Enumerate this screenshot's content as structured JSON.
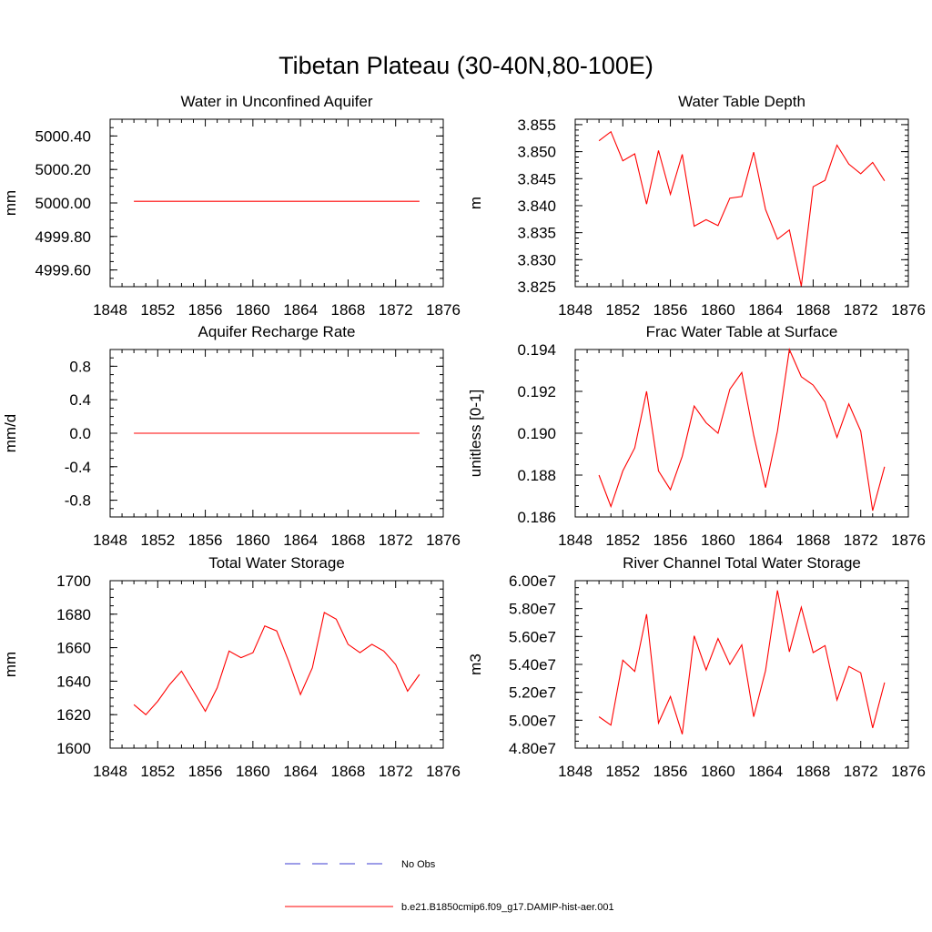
{
  "figure": {
    "title": "Tibetan Plateau (30-40N,80-100E)"
  },
  "legend": {
    "items": [
      {
        "label": "No Obs",
        "color": "#3b3bd1",
        "style": "dashed"
      },
      {
        "label": "b.e21.B1850cmip6.f09_g17.DAMIP-hist-aer.001",
        "color": "#ff0000",
        "style": "solid"
      }
    ]
  },
  "colors": {
    "series": "#ff0000",
    "axis": "#000000"
  },
  "chart_data": [
    {
      "type": "line",
      "title": "Water in Unconfined Aquifer",
      "xlabel": "",
      "ylabel": "mm",
      "xlim": [
        1848,
        1876
      ],
      "ylim": [
        4999.5,
        5000.5
      ],
      "xticks": [
        1848,
        1852,
        1856,
        1860,
        1864,
        1868,
        1872,
        1876
      ],
      "yticks": [
        4999.6,
        4999.8,
        5000.0,
        5000.2,
        5000.4
      ],
      "ytick_labels": [
        "4999.60",
        "4999.80",
        "5000.00",
        "5000.20",
        "5000.40"
      ],
      "yminor_step": 0.05,
      "x": [
        1850,
        1851,
        1852,
        1853,
        1854,
        1855,
        1856,
        1857,
        1858,
        1859,
        1860,
        1861,
        1862,
        1863,
        1864,
        1865,
        1866,
        1867,
        1868,
        1869,
        1870,
        1871,
        1872,
        1873,
        1874
      ],
      "series": [
        {
          "values": [
            5000.01,
            5000.01,
            5000.01,
            5000.01,
            5000.01,
            5000.01,
            5000.01,
            5000.01,
            5000.01,
            5000.01,
            5000.01,
            5000.01,
            5000.01,
            5000.01,
            5000.01,
            5000.01,
            5000.01,
            5000.01,
            5000.01,
            5000.01,
            5000.01,
            5000.01,
            5000.01,
            5000.01,
            5000.01
          ]
        }
      ]
    },
    {
      "type": "line",
      "title": "Water Table Depth",
      "xlabel": "",
      "ylabel": "m",
      "xlim": [
        1848,
        1876
      ],
      "ylim": [
        3.825,
        3.856
      ],
      "xticks": [
        1848,
        1852,
        1856,
        1860,
        1864,
        1868,
        1872,
        1876
      ],
      "yticks": [
        3.825,
        3.83,
        3.835,
        3.84,
        3.845,
        3.85,
        3.855
      ],
      "ytick_labels": [
        "3.825",
        "3.830",
        "3.835",
        "3.840",
        "3.845",
        "3.850",
        "3.855"
      ],
      "yminor_step": 0.001,
      "x": [
        1850,
        1851,
        1852,
        1853,
        1854,
        1855,
        1856,
        1857,
        1858,
        1859,
        1860,
        1861,
        1862,
        1863,
        1864,
        1865,
        1866,
        1867,
        1868,
        1869,
        1870,
        1871,
        1872,
        1873,
        1874
      ],
      "series": [
        {
          "values": [
            3.852,
            3.8537,
            3.8483,
            3.8496,
            3.8403,
            3.8502,
            3.8421,
            3.8495,
            3.8362,
            3.8374,
            3.8363,
            3.8414,
            3.8417,
            3.8499,
            3.8393,
            3.8338,
            3.8355,
            3.8251,
            3.8435,
            3.8447,
            3.8512,
            3.8477,
            3.8459,
            3.848,
            3.8446
          ]
        }
      ]
    },
    {
      "type": "line",
      "title": "Aquifer Recharge Rate",
      "xlabel": "",
      "ylabel": "mm/d",
      "xlim": [
        1848,
        1876
      ],
      "ylim": [
        -1.0,
        1.0
      ],
      "xticks": [
        1848,
        1852,
        1856,
        1860,
        1864,
        1868,
        1872,
        1876
      ],
      "yticks": [
        -0.8,
        -0.4,
        0.0,
        0.4,
        0.8
      ],
      "ytick_labels": [
        "-0.8",
        "-0.4",
        "0.0",
        "0.4",
        "0.8"
      ],
      "yminor_step": 0.1,
      "x": [
        1850,
        1851,
        1852,
        1853,
        1854,
        1855,
        1856,
        1857,
        1858,
        1859,
        1860,
        1861,
        1862,
        1863,
        1864,
        1865,
        1866,
        1867,
        1868,
        1869,
        1870,
        1871,
        1872,
        1873,
        1874
      ],
      "series": [
        {
          "values": [
            0,
            0,
            0,
            0,
            0,
            0,
            0,
            0,
            0,
            0,
            0,
            0,
            0,
            0,
            0,
            0,
            0,
            0,
            0,
            0,
            0,
            0,
            0,
            0,
            0
          ]
        }
      ]
    },
    {
      "type": "line",
      "title": "Frac Water Table at Surface",
      "xlabel": "",
      "ylabel": "unitless [0-1]",
      "xlim": [
        1848,
        1876
      ],
      "ylim": [
        0.186,
        0.194
      ],
      "xticks": [
        1848,
        1852,
        1856,
        1860,
        1864,
        1868,
        1872,
        1876
      ],
      "yticks": [
        0.186,
        0.188,
        0.19,
        0.192,
        0.194
      ],
      "ytick_labels": [
        "0.186",
        "0.188",
        "0.190",
        "0.192",
        "0.194"
      ],
      "yminor_step": 0.0005,
      "x": [
        1850,
        1851,
        1852,
        1853,
        1854,
        1855,
        1856,
        1857,
        1858,
        1859,
        1860,
        1861,
        1862,
        1863,
        1864,
        1865,
        1866,
        1867,
        1868,
        1869,
        1870,
        1871,
        1872,
        1873,
        1874
      ],
      "series": [
        {
          "values": [
            0.188,
            0.1865,
            0.1882,
            0.1893,
            0.192,
            0.1882,
            0.1873,
            0.1889,
            0.1913,
            0.1905,
            0.19,
            0.1921,
            0.1929,
            0.1899,
            0.1874,
            0.1901,
            0.194,
            0.1927,
            0.1923,
            0.1915,
            0.1898,
            0.1914,
            0.1901,
            0.1863,
            0.1884
          ]
        }
      ]
    },
    {
      "type": "line",
      "title": "Total Water Storage",
      "xlabel": "",
      "ylabel": "mm",
      "xlim": [
        1848,
        1876
      ],
      "ylim": [
        1600,
        1700
      ],
      "xticks": [
        1848,
        1852,
        1856,
        1860,
        1864,
        1868,
        1872,
        1876
      ],
      "yticks": [
        1600,
        1620,
        1640,
        1660,
        1680,
        1700
      ],
      "ytick_labels": [
        "1600",
        "1620",
        "1640",
        "1660",
        "1680",
        "1700"
      ],
      "yminor_step": 5,
      "x": [
        1850,
        1851,
        1852,
        1853,
        1854,
        1855,
        1856,
        1857,
        1858,
        1859,
        1860,
        1861,
        1862,
        1863,
        1864,
        1865,
        1866,
        1867,
        1868,
        1869,
        1870,
        1871,
        1872,
        1873,
        1874
      ],
      "series": [
        {
          "values": [
            1626,
            1620,
            1628,
            1638,
            1646,
            1634,
            1622,
            1636,
            1658,
            1654,
            1657,
            1673,
            1670,
            1652,
            1632,
            1648,
            1681,
            1677,
            1662,
            1657,
            1662,
            1658,
            1650,
            1634,
            1644
          ]
        }
      ]
    },
    {
      "type": "line",
      "title": "River Channel Total Water Storage",
      "xlabel": "",
      "ylabel": "m3",
      "xlim": [
        1848,
        1876
      ],
      "ylim": [
        48000000,
        60000000
      ],
      "xticks": [
        1848,
        1852,
        1856,
        1860,
        1864,
        1868,
        1872,
        1876
      ],
      "yticks": [
        48000000,
        50000000,
        52000000,
        54000000,
        56000000,
        58000000,
        60000000
      ],
      "ytick_labels": [
        "4.80e7",
        "5.00e7",
        "5.20e7",
        "5.40e7",
        "5.60e7",
        "5.80e7",
        "6.00e7"
      ],
      "yminor_step": 500000,
      "x": [
        1850,
        1851,
        1852,
        1853,
        1854,
        1855,
        1856,
        1857,
        1858,
        1859,
        1860,
        1861,
        1862,
        1863,
        1864,
        1865,
        1866,
        1867,
        1868,
        1869,
        1870,
        1871,
        1872,
        1873,
        1874
      ],
      "series": [
        {
          "values": [
            50250000,
            49650000,
            54300000,
            53500000,
            57600000,
            49800000,
            51700000,
            49000000,
            56050000,
            53600000,
            55850000,
            54000000,
            55400000,
            50250000,
            53550000,
            59300000,
            54900000,
            58100000,
            54850000,
            55350000,
            51450000,
            53850000,
            53400000,
            49450000,
            52700000
          ]
        }
      ]
    }
  ]
}
